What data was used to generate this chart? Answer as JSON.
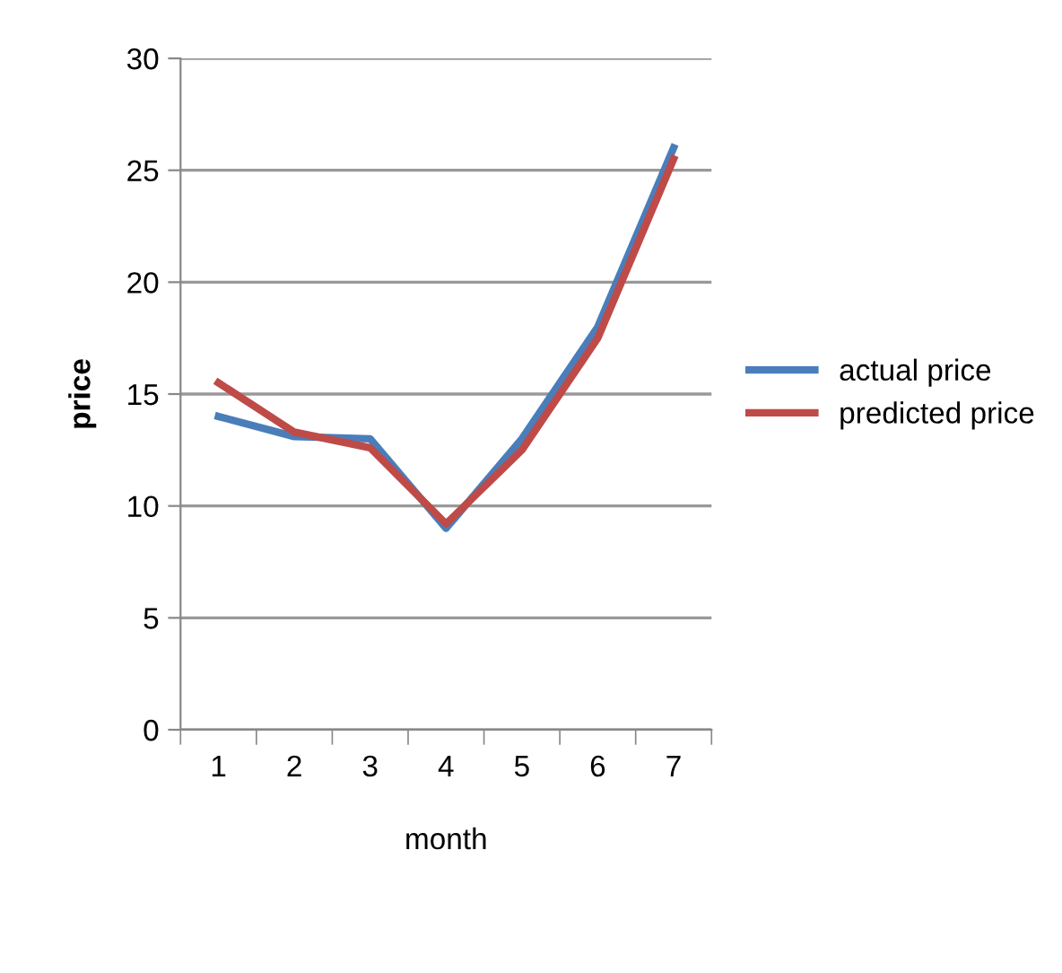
{
  "chart_data": {
    "type": "line",
    "xlabel": "month",
    "ylabel": "price",
    "categories": [
      "1",
      "2",
      "3",
      "4",
      "5",
      "6",
      "7"
    ],
    "series": [
      {
        "name": "actual price",
        "color": "#4a7ebb",
        "values": [
          14,
          13.1,
          13,
          9,
          13,
          18,
          26
        ]
      },
      {
        "name": "predicted price",
        "color": "#be4b48",
        "values": [
          15.5,
          13.3,
          12.6,
          9.2,
          12.5,
          17.5,
          25.5
        ]
      }
    ],
    "ylim": [
      0,
      30
    ],
    "yticks": [
      0,
      5,
      10,
      15,
      20,
      25,
      30
    ],
    "grid": "y",
    "legend": "right",
    "marker": "none",
    "line_style": "solid"
  }
}
